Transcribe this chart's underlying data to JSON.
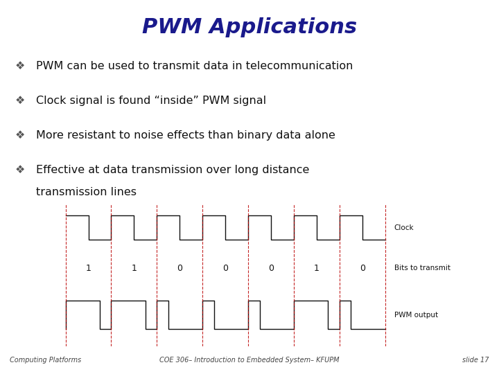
{
  "title": "PWM Applications",
  "title_color": "#1a1a8c",
  "title_bg_color": "#c8c8f0",
  "slide_bg_color": "#ffffff",
  "footer_bg_color": "#ffffcc",
  "bullet_points": [
    "PWM can be used to transmit data in telecommunication",
    "Clock signal is found “inside” PWM signal",
    "More resistant to noise effects than binary data alone",
    "Effective at data transmission over long distance",
    "transmission lines"
  ],
  "bullet_color": "#111111",
  "diagram_bg_color": "#dce8f8",
  "diagram_border_color": "#444444",
  "clock_color": "#111111",
  "pwm_color": "#111111",
  "dashed_line_color": "#bb0000",
  "label_color": "#111111",
  "bits": [
    1,
    1,
    0,
    0,
    0,
    1,
    0
  ],
  "footer_left": "Computing Platforms",
  "footer_center": "COE 306– Introduction to Embedded System– KFUPM",
  "footer_right": "slide 17",
  "footer_color": "#444444"
}
